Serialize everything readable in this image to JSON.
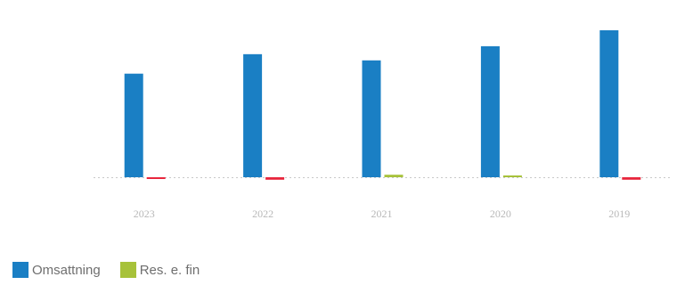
{
  "chart_data": {
    "type": "bar",
    "categories": [
      "2023",
      "2022",
      "2021",
      "2020",
      "2019"
    ],
    "series": [
      {
        "name": "Omsattning",
        "color": "#1a7fc4",
        "values": [
          117,
          139,
          132,
          148,
          166
        ]
      },
      {
        "name": "Res. e. fin",
        "color": "#e8263d",
        "positive_color": "#a7c23a",
        "values": [
          -1,
          -2,
          2,
          1,
          -2
        ]
      }
    ],
    "title": "",
    "xlabel": "",
    "ylabel": "",
    "ylim": [
      -30,
      180
    ],
    "grid": false,
    "legend_position": "bottom-left"
  },
  "legend": {
    "items": [
      {
        "label": "Omsattning",
        "color": "#1a7fc4"
      },
      {
        "label": "Res. e. fin",
        "color": "#a7c23a"
      }
    ]
  }
}
